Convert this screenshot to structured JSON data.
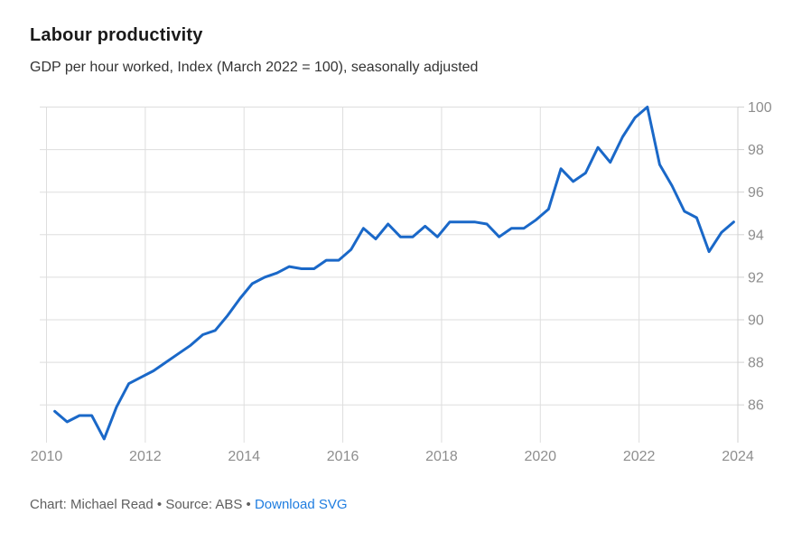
{
  "header": {
    "title": "Labour productivity",
    "subtitle": "GDP per hour worked, Index (March 2022 = 100), seasonally adjusted"
  },
  "footer": {
    "credit": "Chart: Michael Read • Source: ABS • ",
    "download_link": "Download SVG"
  },
  "colors": {
    "line": "#1a68c8",
    "link": "#1f7de0",
    "grid": "#dedede",
    "axis": "#d2d2d2",
    "tick_label": "#8e8e8e",
    "title": "#1a1a1a",
    "subtitle": "#333333",
    "footer": "#5f5f5f",
    "background": "#ffffff"
  },
  "chart_data": {
    "type": "line",
    "title": "Labour productivity",
    "subtitle": "GDP per hour worked, Index (March 2022 = 100), seasonally adjusted",
    "series_name": "GDP per hour worked (index, March 2022 = 100, seasonally adjusted)",
    "xlabel": "",
    "ylabel": "",
    "x_ticks": [
      2010,
      2012,
      2014,
      2016,
      2018,
      2020,
      2022,
      2024
    ],
    "y_ticks": [
      86,
      88,
      90,
      92,
      94,
      96,
      98,
      100
    ],
    "xlim": [
      2010,
      2024
    ],
    "ylim": [
      84.2,
      100
    ],
    "grid": true,
    "y_axis_side": "right",
    "legend": "none",
    "points": [
      {
        "date": "2010-03",
        "value": 85.7
      },
      {
        "date": "2010-06",
        "value": 85.2
      },
      {
        "date": "2010-09",
        "value": 85.5
      },
      {
        "date": "2010-12",
        "value": 85.5
      },
      {
        "date": "2011-03",
        "value": 84.4
      },
      {
        "date": "2011-06",
        "value": 85.9
      },
      {
        "date": "2011-09",
        "value": 87.0
      },
      {
        "date": "2011-12",
        "value": 87.3
      },
      {
        "date": "2012-03",
        "value": 87.6
      },
      {
        "date": "2012-06",
        "value": 88.0
      },
      {
        "date": "2012-09",
        "value": 88.4
      },
      {
        "date": "2012-12",
        "value": 88.8
      },
      {
        "date": "2013-03",
        "value": 89.3
      },
      {
        "date": "2013-06",
        "value": 89.5
      },
      {
        "date": "2013-09",
        "value": 90.2
      },
      {
        "date": "2013-12",
        "value": 91.0
      },
      {
        "date": "2014-03",
        "value": 91.7
      },
      {
        "date": "2014-06",
        "value": 92.0
      },
      {
        "date": "2014-09",
        "value": 92.2
      },
      {
        "date": "2014-12",
        "value": 92.5
      },
      {
        "date": "2015-03",
        "value": 92.4
      },
      {
        "date": "2015-06",
        "value": 92.4
      },
      {
        "date": "2015-09",
        "value": 92.8
      },
      {
        "date": "2015-12",
        "value": 92.8
      },
      {
        "date": "2016-03",
        "value": 93.3
      },
      {
        "date": "2016-06",
        "value": 94.3
      },
      {
        "date": "2016-09",
        "value": 93.8
      },
      {
        "date": "2016-12",
        "value": 94.5
      },
      {
        "date": "2017-03",
        "value": 93.9
      },
      {
        "date": "2017-06",
        "value": 93.9
      },
      {
        "date": "2017-09",
        "value": 94.4
      },
      {
        "date": "2017-12",
        "value": 93.9
      },
      {
        "date": "2018-03",
        "value": 94.6
      },
      {
        "date": "2018-06",
        "value": 94.6
      },
      {
        "date": "2018-09",
        "value": 94.6
      },
      {
        "date": "2018-12",
        "value": 94.5
      },
      {
        "date": "2019-03",
        "value": 93.9
      },
      {
        "date": "2019-06",
        "value": 94.3
      },
      {
        "date": "2019-09",
        "value": 94.3
      },
      {
        "date": "2019-12",
        "value": 94.7
      },
      {
        "date": "2020-03",
        "value": 95.2
      },
      {
        "date": "2020-06",
        "value": 97.1
      },
      {
        "date": "2020-09",
        "value": 96.5
      },
      {
        "date": "2020-12",
        "value": 96.9
      },
      {
        "date": "2021-03",
        "value": 98.1
      },
      {
        "date": "2021-06",
        "value": 97.4
      },
      {
        "date": "2021-09",
        "value": 98.6
      },
      {
        "date": "2021-12",
        "value": 99.5
      },
      {
        "date": "2022-03",
        "value": 100.0
      },
      {
        "date": "2022-06",
        "value": 97.3
      },
      {
        "date": "2022-09",
        "value": 96.3
      },
      {
        "date": "2022-12",
        "value": 95.1
      },
      {
        "date": "2023-03",
        "value": 94.8
      },
      {
        "date": "2023-06",
        "value": 93.2
      },
      {
        "date": "2023-09",
        "value": 94.1
      },
      {
        "date": "2023-12",
        "value": 94.6
      }
    ]
  }
}
